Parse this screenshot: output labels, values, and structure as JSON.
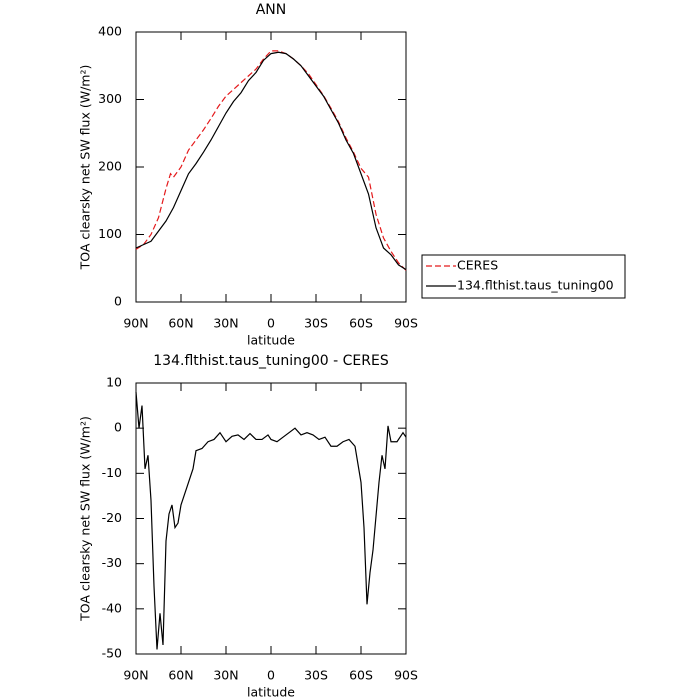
{
  "chart_data": [
    {
      "type": "line",
      "title": "ANN",
      "xlabel": "latitude",
      "ylabel": "TOA clearsky net SW flux (W/m²)",
      "xlim": [
        90,
        -90
      ],
      "ylim": [
        0,
        400
      ],
      "xticks": [
        {
          "value": 90,
          "label": "90N"
        },
        {
          "value": 60,
          "label": "60N"
        },
        {
          "value": 30,
          "label": "30N"
        },
        0,
        {
          "value": -30,
          "label": "30S"
        },
        {
          "value": -60,
          "label": "60S"
        },
        {
          "value": -90,
          "label": "90S"
        }
      ],
      "yticks": [
        0,
        100,
        200,
        300,
        400
      ],
      "legend": "right",
      "series": [
        {
          "name": "CERES",
          "color": "#e41a1c",
          "dash": "dashed",
          "x": [
            90,
            85,
            80,
            75,
            70,
            67,
            65,
            60,
            55,
            50,
            45,
            40,
            35,
            30,
            25,
            20,
            15,
            10,
            5,
            0,
            -5,
            -10,
            -15,
            -20,
            -25,
            -30,
            -35,
            -40,
            -45,
            -50,
            -55,
            -60,
            -65,
            -70,
            -75,
            -80,
            -85,
            -90
          ],
          "values": [
            78,
            85,
            100,
            125,
            168,
            190,
            185,
            200,
            225,
            240,
            255,
            272,
            290,
            305,
            315,
            325,
            335,
            345,
            360,
            372,
            372,
            368,
            360,
            350,
            338,
            322,
            306,
            287,
            267,
            243,
            222,
            198,
            185,
            130,
            95,
            75,
            58,
            47
          ]
        },
        {
          "name": "134.flthist.taus_tuning00",
          "color": "#000000",
          "dash": "solid",
          "x": [
            90,
            85,
            80,
            75,
            70,
            65,
            60,
            55,
            50,
            45,
            40,
            35,
            30,
            25,
            20,
            15,
            10,
            5,
            0,
            -5,
            -10,
            -15,
            -20,
            -25,
            -30,
            -35,
            -40,
            -45,
            -50,
            -55,
            -60,
            -65,
            -70,
            -75,
            -80,
            -85,
            -90
          ],
          "values": [
            80,
            85,
            90,
            105,
            120,
            140,
            165,
            190,
            205,
            222,
            240,
            260,
            280,
            297,
            310,
            328,
            340,
            358,
            368,
            370,
            368,
            360,
            350,
            335,
            320,
            305,
            285,
            265,
            240,
            220,
            190,
            160,
            110,
            80,
            70,
            55,
            48
          ]
        }
      ]
    },
    {
      "type": "line",
      "title": "134.flthist.taus_tuning00 - CERES",
      "xlabel": "latitude",
      "ylabel": "TOA clearsky net SW flux (W/m²)",
      "xlim": [
        90,
        -90
      ],
      "ylim": [
        -50,
        10
      ],
      "xticks": [
        {
          "value": 90,
          "label": "90N"
        },
        {
          "value": 60,
          "label": "60N"
        },
        {
          "value": 30,
          "label": "30N"
        },
        0,
        {
          "value": -30,
          "label": "30S"
        },
        {
          "value": -60,
          "label": "60S"
        },
        {
          "value": -90,
          "label": "90S"
        }
      ],
      "yticks": [
        -50,
        -40,
        -30,
        -20,
        -10,
        0,
        10
      ],
      "series": [
        {
          "color": "#000000",
          "dash": "solid",
          "x": [
            90,
            88,
            86,
            84,
            82,
            80,
            78,
            76,
            74,
            72,
            70,
            68,
            66,
            64,
            62,
            60,
            56,
            52,
            50,
            46,
            42,
            38,
            34,
            30,
            26,
            22,
            18,
            14,
            10,
            6,
            2,
            0,
            -4,
            -8,
            -12,
            -16,
            -20,
            -24,
            -28,
            -32,
            -36,
            -40,
            -44,
            -48,
            -52,
            -56,
            -60,
            -62,
            -64,
            -66,
            -68,
            -72,
            -74,
            -76,
            -78,
            -80,
            -84,
            -88,
            -90
          ],
          "values": [
            8,
            0,
            5,
            -9,
            -6,
            -16,
            -35,
            -49,
            -41,
            -48,
            -25,
            -19,
            -17,
            -22,
            -21,
            -17,
            -13,
            -9,
            -5,
            -4.5,
            -3,
            -2.5,
            -1,
            -3,
            -1.8,
            -1.5,
            -2.5,
            -1.2,
            -2.5,
            -2.5,
            -1.5,
            -2.5,
            -3,
            -2,
            -1,
            0,
            -1.5,
            -1,
            -1.5,
            -2.5,
            -2,
            -4,
            -4,
            -3,
            -2.5,
            -4,
            -12,
            -22,
            -39,
            -32,
            -27,
            -12,
            -6,
            -9,
            0.5,
            -3,
            -3,
            -1,
            -2
          ]
        }
      ]
    }
  ]
}
